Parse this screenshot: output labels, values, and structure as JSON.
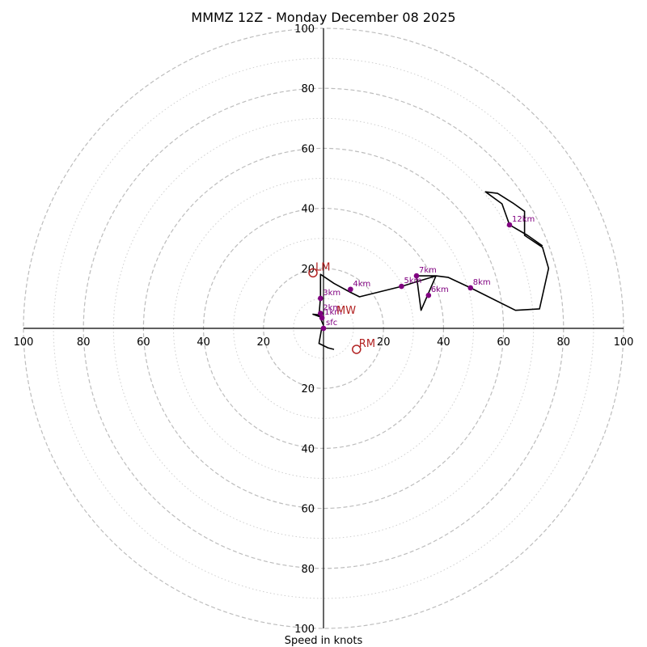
{
  "chart_data": {
    "type": "hodograph",
    "title": "MMMZ 12Z - Monday December 08 2025",
    "xlabel": "Speed in knots",
    "ylabel": "",
    "xlim": [
      -100,
      100
    ],
    "ylim": [
      -100,
      100
    ],
    "rings_major": [
      20,
      40,
      60,
      80,
      100
    ],
    "rings_minor": [
      10,
      30,
      50,
      70,
      90
    ],
    "ticks": [
      {
        "label": "100",
        "value": 100
      },
      {
        "label": "80",
        "value": 80
      },
      {
        "label": "60",
        "value": 60
      },
      {
        "label": "40",
        "value": 40
      },
      {
        "label": "20",
        "value": 20
      }
    ],
    "grid": true,
    "line": [
      [
        0,
        1
      ],
      [
        -1.5,
        4.5
      ],
      [
        -3.5,
        4.7
      ],
      [
        -1.5,
        4
      ],
      [
        -1,
        10.5
      ],
      [
        -1,
        18
      ],
      [
        3.5,
        15
      ],
      [
        9,
        12
      ],
      [
        12,
        10.5
      ],
      [
        26,
        14
      ],
      [
        37.5,
        17.5
      ],
      [
        32.5,
        6
      ],
      [
        31,
        17.5
      ],
      [
        37.5,
        17.5
      ],
      [
        41.5,
        17
      ],
      [
        49,
        13.5
      ],
      [
        64,
        6
      ],
      [
        72,
        6.5
      ],
      [
        75,
        20
      ],
      [
        73,
        27
      ],
      [
        67,
        31
      ],
      [
        67,
        39
      ],
      [
        63.5,
        41.5
      ],
      [
        58,
        45
      ],
      [
        54,
        45.5
      ],
      [
        59.5,
        41.5
      ],
      [
        62,
        34.5
      ],
      [
        68,
        31
      ],
      [
        73,
        27.5
      ]
    ],
    "tail": [
      [
        -0.5,
        0.5
      ],
      [
        -1.5,
        -5
      ],
      [
        1.5,
        -6.5
      ],
      [
        3.5,
        -7
      ]
    ],
    "heights": [
      {
        "label": "sfc",
        "u": 0,
        "v": 0
      },
      {
        "label": "1km",
        "u": -0.5,
        "v": 3.5
      },
      {
        "label": "2km",
        "u": -1,
        "v": 5
      },
      {
        "label": "3km",
        "u": -1,
        "v": 10
      },
      {
        "label": "4km",
        "u": 9,
        "v": 13
      },
      {
        "label": "5km",
        "u": 26,
        "v": 14
      },
      {
        "label": "6km",
        "u": 35,
        "v": 11
      },
      {
        "label": "7km",
        "u": 31,
        "v": 17.5
      },
      {
        "label": "8km",
        "u": 49,
        "v": 13.5
      },
      {
        "label": "12km",
        "u": 62,
        "v": 34.5
      }
    ],
    "motions": [
      {
        "label": "LM",
        "u": -3.5,
        "v": 18.5,
        "circle": true
      },
      {
        "label": "RM",
        "u": 11,
        "v": -7,
        "circle": true
      },
      {
        "label": "MW",
        "u": 3.5,
        "v": 4,
        "circle": false
      }
    ],
    "colors": {
      "line": "#000000",
      "points": "#800080",
      "motions": "#b22222",
      "grid": "#bdbdbd"
    }
  }
}
